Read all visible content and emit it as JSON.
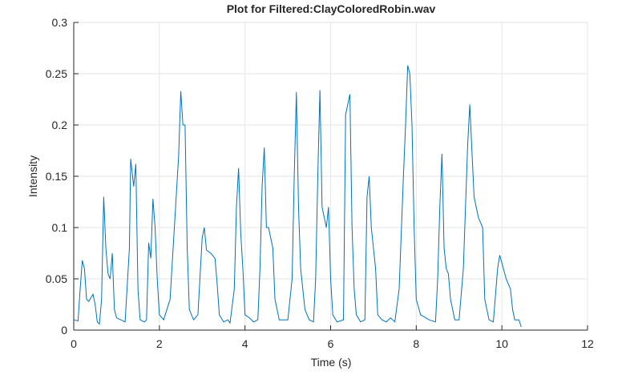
{
  "chart_data": {
    "type": "line",
    "title": "Plot for Filtered:ClayColoredRobin.wav",
    "x_label": "Time (s)",
    "y_label": "Intensity",
    "xlim": [
      0,
      12
    ],
    "ylim": [
      0,
      0.3
    ],
    "xticks": [
      0,
      2,
      4,
      6,
      8,
      10,
      12
    ],
    "yticks": [
      0,
      0.05,
      0.1,
      0.15,
      0.2,
      0.25,
      0.3
    ],
    "grid": true,
    "series": [
      {
        "color": "#0072bd",
        "x": [
          0,
          0.1,
          0.15,
          0.2,
          0.25,
          0.3,
          0.35,
          0.45,
          0.5,
          0.55,
          0.6,
          0.65,
          0.7,
          0.75,
          0.8,
          0.85,
          0.9,
          0.95,
          1.0,
          1.1,
          1.2,
          1.3,
          1.33,
          1.4,
          1.45,
          1.5,
          1.55,
          1.65,
          1.7,
          1.75,
          1.8,
          1.85,
          1.9,
          1.95,
          2.0,
          2.1,
          2.25,
          2.35,
          2.45,
          2.5,
          2.55,
          2.6,
          2.65,
          2.7,
          2.8,
          2.9,
          3.0,
          3.05,
          3.1,
          3.2,
          3.3,
          3.35,
          3.4,
          3.5,
          3.6,
          3.65,
          3.75,
          3.8,
          3.85,
          3.9,
          3.95,
          4.0,
          4.1,
          4.2,
          4.3,
          4.35,
          4.4,
          4.45,
          4.5,
          4.55,
          4.65,
          4.7,
          4.8,
          5.0,
          5.1,
          5.15,
          5.2,
          5.25,
          5.3,
          5.4,
          5.5,
          5.6,
          5.65,
          5.7,
          5.75,
          5.8,
          5.9,
          5.95,
          6.0,
          6.05,
          6.15,
          6.3,
          6.35,
          6.45,
          6.5,
          6.55,
          6.6,
          6.7,
          6.8,
          6.85,
          6.9,
          6.95,
          7.05,
          7.1,
          7.2,
          7.3,
          7.4,
          7.5,
          7.6,
          7.7,
          7.75,
          7.8,
          7.85,
          7.9,
          7.95,
          8.0,
          8.1,
          8.3,
          8.45,
          8.5,
          8.55,
          8.6,
          8.65,
          8.7,
          8.75,
          8.8,
          8.9,
          9.0,
          9.1,
          9.2,
          9.25,
          9.35,
          9.45,
          9.55,
          9.6,
          9.7,
          9.8,
          9.9,
          9.95,
          10.1,
          10.2,
          10.25,
          10.3,
          10.4,
          10.45
        ],
        "values": [
          0.01,
          0.009,
          0.04,
          0.068,
          0.06,
          0.03,
          0.028,
          0.035,
          0.025,
          0.008,
          0.006,
          0.03,
          0.13,
          0.08,
          0.055,
          0.05,
          0.075,
          0.02,
          0.012,
          0.01,
          0.008,
          0.08,
          0.167,
          0.14,
          0.162,
          0.04,
          0.01,
          0.008,
          0.01,
          0.085,
          0.07,
          0.128,
          0.1,
          0.05,
          0.015,
          0.01,
          0.03,
          0.1,
          0.17,
          0.233,
          0.2,
          0.2,
          0.08,
          0.02,
          0.01,
          0.015,
          0.09,
          0.1,
          0.078,
          0.075,
          0.07,
          0.045,
          0.015,
          0.008,
          0.01,
          0.007,
          0.04,
          0.12,
          0.158,
          0.095,
          0.06,
          0.015,
          0.012,
          0.008,
          0.01,
          0.06,
          0.14,
          0.178,
          0.1,
          0.1,
          0.08,
          0.03,
          0.01,
          0.01,
          0.05,
          0.15,
          0.232,
          0.12,
          0.06,
          0.02,
          0.01,
          0.008,
          0.05,
          0.15,
          0.234,
          0.12,
          0.1,
          0.12,
          0.05,
          0.015,
          0.008,
          0.01,
          0.21,
          0.23,
          0.1,
          0.04,
          0.015,
          0.008,
          0.01,
          0.13,
          0.15,
          0.1,
          0.06,
          0.015,
          0.01,
          0.008,
          0.012,
          0.008,
          0.04,
          0.15,
          0.2,
          0.258,
          0.25,
          0.2,
          0.1,
          0.03,
          0.015,
          0.01,
          0.008,
          0.05,
          0.12,
          0.172,
          0.08,
          0.06,
          0.055,
          0.03,
          0.01,
          0.01,
          0.06,
          0.18,
          0.22,
          0.13,
          0.11,
          0.1,
          0.03,
          0.01,
          0.008,
          0.06,
          0.073,
          0.05,
          0.04,
          0.02,
          0.01,
          0.01,
          0.003
        ]
      }
    ]
  }
}
